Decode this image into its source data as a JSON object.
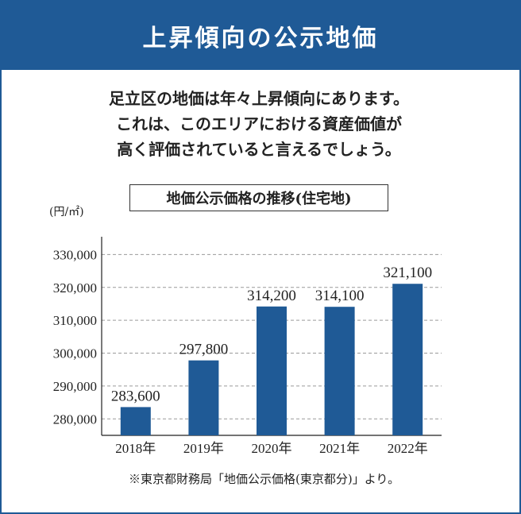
{
  "header": {
    "title": "上昇傾向の公示地価"
  },
  "description": [
    "足立区の地価は年々上昇傾向にあります。",
    "これは、このエリアにおける資産価値が",
    "高く評価されていると言えるでしょう。"
  ],
  "colors": {
    "brand": "#1f5a96",
    "bar": "#1f5a96",
    "grid": "#9a9a9a"
  },
  "chart_data": {
    "type": "bar",
    "title": "地価公示価格の推移(住宅地)",
    "unit_label": "(円/㎡)",
    "categories": [
      "2018年",
      "2019年",
      "2020年",
      "2021年",
      "2022年"
    ],
    "values": [
      283600,
      297800,
      314200,
      314100,
      321100
    ],
    "value_labels": [
      "283,600",
      "297,800",
      "314,200",
      "314,100",
      "321,100"
    ],
    "yticks": [
      "280,000",
      "290,000",
      "300,000",
      "310,000",
      "320,000",
      "330,000"
    ],
    "ytick_values": [
      280000,
      290000,
      300000,
      310000,
      320000,
      330000
    ],
    "ylim": [
      275000,
      333000
    ],
    "grid": true
  },
  "footer": {
    "source_note": "※東京都財務局「地価公示価格(東京都分)」より。"
  }
}
